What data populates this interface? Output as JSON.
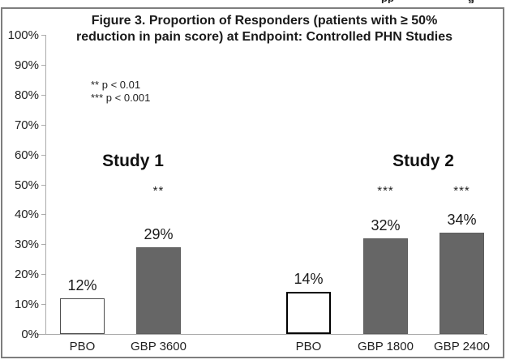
{
  "page": {
    "clipped_header_fragments": {
      "left": "pp",
      "right": "g"
    }
  },
  "figure": {
    "title_line1": "Figure 3. Proportion of Responders (patients with ≥ 50%",
    "title_line2": "reduction in pain score) at Endpoint: Controlled PHN Studies",
    "colors": {
      "bar_dark": "#666666",
      "bar_white": "#ffffff",
      "axis": "#ababab",
      "frame_border": "#7e7e7e"
    }
  },
  "chart_data": {
    "type": "bar",
    "title": "Figure 3. Proportion of Responders (patients with ≥ 50% reduction in pain score) at Endpoint: Controlled PHN Studies",
    "xlabel": "",
    "ylabel": "",
    "ylim": [
      0,
      100
    ],
    "ytick_step": 10,
    "ytick_labels": [
      "0%",
      "10%",
      "20%",
      "30%",
      "40%",
      "50%",
      "60%",
      "70%",
      "80%",
      "90%",
      "100%"
    ],
    "grid": false,
    "legend_position": "upper-left-inside",
    "annotations": [
      "** p < 0.01",
      "*** p < 0.001"
    ],
    "groups": [
      {
        "label": "Study 1",
        "bars": [
          {
            "category": "PBO",
            "value": 12,
            "value_label": "12%",
            "fill": "white",
            "border": "thin-gray",
            "significance": ""
          },
          {
            "category": "GBP 3600",
            "value": 29,
            "value_label": "29%",
            "fill": "dark",
            "border": "none",
            "significance": "**"
          }
        ]
      },
      {
        "label": "Study 2",
        "bars": [
          {
            "category": "PBO",
            "value": 14,
            "value_label": "14%",
            "fill": "white",
            "border": "thick-black",
            "significance": ""
          },
          {
            "category": "GBP 1800",
            "value": 32,
            "value_label": "32%",
            "fill": "dark",
            "border": "none",
            "significance": "***"
          },
          {
            "category": "GBP 2400",
            "value": 34,
            "value_label": "34%",
            "fill": "dark",
            "border": "none",
            "significance": "***"
          }
        ]
      }
    ]
  }
}
